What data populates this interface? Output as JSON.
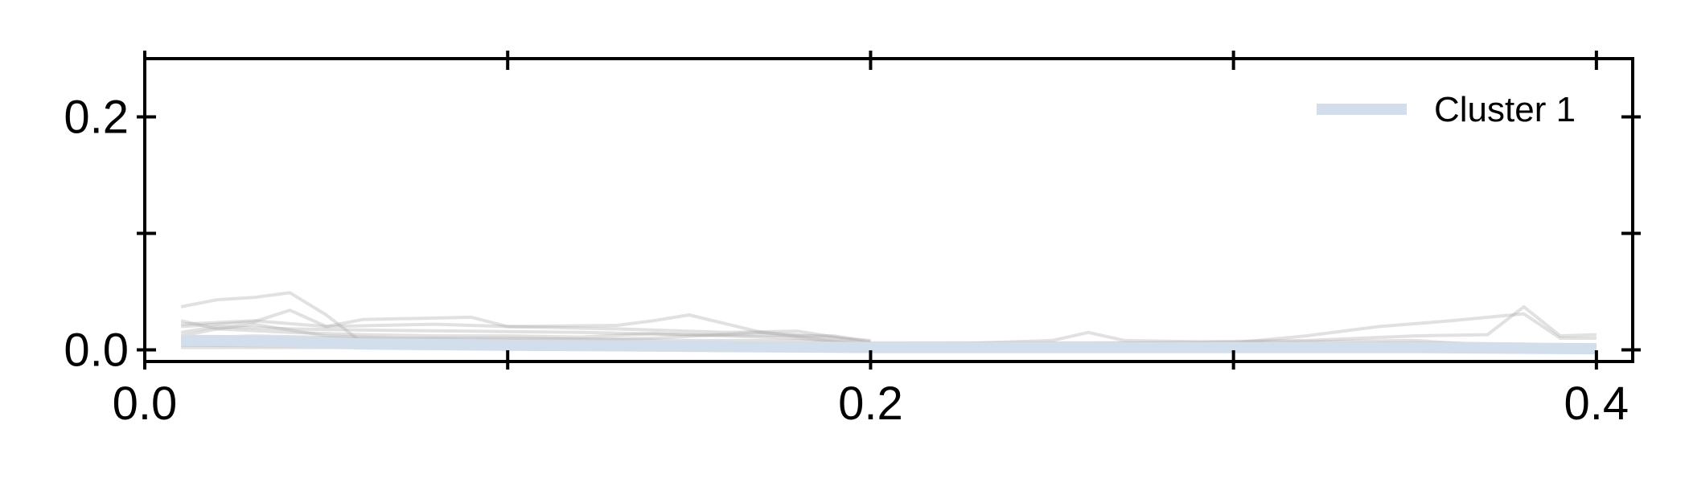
{
  "chart_data": {
    "type": "line",
    "title": "",
    "xlabel": "",
    "ylabel": "",
    "xlim": [
      0.0,
      0.41
    ],
    "ylim": [
      -0.01,
      0.25
    ],
    "x_ticks": [
      0.0,
      0.1,
      0.2,
      0.3,
      0.4
    ],
    "x_tick_labels": [
      "0.0",
      "",
      "0.2",
      "",
      "0.4"
    ],
    "y_ticks": [
      0.0,
      0.1,
      0.2
    ],
    "y_tick_labels": [
      "0.0",
      "",
      "0.2"
    ],
    "grid": false,
    "legend": {
      "position": "top-right",
      "entries": [
        {
          "label": "Cluster 1",
          "color": "#d3deec"
        }
      ]
    },
    "background_series_color": "#aaaaaa",
    "background_series": [
      {
        "x": [
          0.01,
          0.02,
          0.03,
          0.04,
          0.05,
          0.06,
          0.08,
          0.1,
          0.13,
          0.15,
          0.18,
          0.2
        ],
        "y": [
          0.037,
          0.043,
          0.045,
          0.049,
          0.03,
          0.006,
          0.005,
          0.005,
          0.004,
          0.004,
          0.004,
          0.004
        ]
      },
      {
        "x": [
          0.01,
          0.02,
          0.03,
          0.04,
          0.05,
          0.06,
          0.09,
          0.1,
          0.13,
          0.14,
          0.15,
          0.17,
          0.2
        ],
        "y": [
          0.02,
          0.022,
          0.024,
          0.034,
          0.02,
          0.026,
          0.028,
          0.02,
          0.021,
          0.025,
          0.03,
          0.015,
          0.008
        ]
      },
      {
        "x": [
          0.01,
          0.03,
          0.05,
          0.08,
          0.1,
          0.13,
          0.16,
          0.18,
          0.2
        ],
        "y": [
          0.022,
          0.025,
          0.02,
          0.022,
          0.02,
          0.018,
          0.015,
          0.016,
          0.006
        ]
      },
      {
        "x": [
          0.01,
          0.02,
          0.04,
          0.06,
          0.09,
          0.12,
          0.15,
          0.19,
          0.2
        ],
        "y": [
          0.015,
          0.02,
          0.018,
          0.017,
          0.016,
          0.015,
          0.013,
          0.012,
          0.007
        ]
      },
      {
        "x": [
          0.01,
          0.02,
          0.04,
          0.06,
          0.08,
          0.1,
          0.12,
          0.14,
          0.16,
          0.18,
          0.2
        ],
        "y": [
          0.012,
          0.018,
          0.015,
          0.013,
          0.012,
          0.012,
          0.011,
          0.014,
          0.012,
          0.01,
          0.005
        ]
      },
      {
        "x": [
          0.01,
          0.02,
          0.03,
          0.05,
          0.07,
          0.1,
          0.12,
          0.14,
          0.17,
          0.2
        ],
        "y": [
          0.025,
          0.018,
          0.022,
          0.012,
          0.01,
          0.01,
          0.009,
          0.01,
          0.015,
          0.004
        ]
      },
      {
        "x": [
          0.01,
          0.03,
          0.06,
          0.09,
          0.12,
          0.15,
          0.18,
          0.2
        ],
        "y": [
          0.01,
          0.012,
          0.01,
          0.009,
          0.009,
          0.008,
          0.008,
          0.005
        ]
      },
      {
        "x": [
          0.2,
          0.24,
          0.28,
          0.3,
          0.32,
          0.34,
          0.36,
          0.38,
          0.39,
          0.4
        ],
        "y": [
          0.005,
          0.005,
          0.006,
          0.006,
          0.012,
          0.02,
          0.025,
          0.031,
          0.01,
          0.01
        ]
      },
      {
        "x": [
          0.2,
          0.23,
          0.25,
          0.26,
          0.27,
          0.29,
          0.32,
          0.35,
          0.37,
          0.38,
          0.39,
          0.4
        ],
        "y": [
          0.006,
          0.006,
          0.008,
          0.015,
          0.008,
          0.007,
          0.008,
          0.012,
          0.013,
          0.037,
          0.012,
          0.013
        ]
      },
      {
        "x": [
          0.2,
          0.24,
          0.28,
          0.32,
          0.35,
          0.37,
          0.4
        ],
        "y": [
          0.005,
          0.006,
          0.006,
          0.007,
          0.008,
          0.004,
          0.004
        ]
      },
      {
        "x": [
          0.2,
          0.25,
          0.3,
          0.35,
          0.38,
          0.4
        ],
        "y": [
          0.004,
          0.005,
          0.005,
          0.006,
          0.005,
          0.003
        ]
      },
      {
        "x": [
          0.2,
          0.24,
          0.29,
          0.33,
          0.37,
          0.4
        ],
        "y": [
          0.003,
          0.004,
          0.003,
          0.004,
          0.003,
          0.002
        ]
      },
      {
        "x": [
          0.01,
          0.05,
          0.1,
          0.15,
          0.2,
          0.25,
          0.3,
          0.35,
          0.4
        ],
        "y": [
          0.002,
          0.002,
          0.002,
          0.002,
          0.002,
          0.002,
          0.002,
          0.002,
          0.002
        ]
      },
      {
        "x": [
          0.01,
          0.05,
          0.1,
          0.15,
          0.2,
          0.25,
          0.3,
          0.35,
          0.4
        ],
        "y": [
          0.004,
          0.003,
          0.003,
          0.003,
          0.003,
          0.003,
          0.003,
          0.003,
          0.003
        ]
      },
      {
        "x": [
          0.01,
          0.05,
          0.1,
          0.15,
          0.2,
          0.25,
          0.3,
          0.35,
          0.4
        ],
        "y": [
          0.007,
          0.006,
          0.005,
          0.005,
          0.004,
          0.004,
          0.004,
          0.004,
          0.003
        ]
      }
    ],
    "series": [
      {
        "name": "Cluster 1",
        "color": "#d3deec",
        "x": [
          0.01,
          0.02,
          0.04,
          0.06,
          0.1,
          0.15,
          0.2,
          0.25,
          0.3,
          0.35,
          0.4
        ],
        "y": [
          0.008,
          0.008,
          0.007,
          0.005,
          0.004,
          0.003,
          0.002,
          0.002,
          0.002,
          0.002,
          0.001
        ]
      }
    ]
  }
}
